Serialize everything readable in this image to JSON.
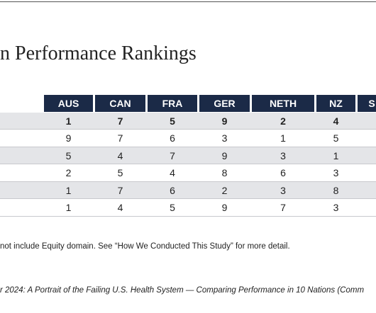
{
  "title": "n Performance Rankings",
  "note": "not include Equity domain. See “How We Conducted This Study” for more detail.",
  "source": "r 2024: A Portrait of the Failing U.S. Health System — Comparing Performance in 10 Nations (Comm",
  "colors": {
    "header_bg": "#1b2a47",
    "header_text": "#ffffff",
    "band": "#e4e5e8",
    "rule": "#c8c9cd"
  },
  "chart_data": {
    "type": "table",
    "columns": [
      "AUS",
      "CAN",
      "FRA",
      "GER",
      "NETH",
      "NZ",
      "S"
    ],
    "rows": [
      {
        "values": [
          "1",
          "7",
          "5",
          "9",
          "2",
          "4",
          ""
        ]
      },
      {
        "values": [
          "9",
          "7",
          "6",
          "3",
          "1",
          "5",
          ""
        ]
      },
      {
        "values": [
          "5",
          "4",
          "7",
          "9",
          "3",
          "1",
          ""
        ]
      },
      {
        "values": [
          "2",
          "5",
          "4",
          "8",
          "6",
          "3",
          ""
        ]
      },
      {
        "values": [
          "1",
          "7",
          "6",
          "2",
          "3",
          "8",
          ""
        ]
      },
      {
        "values": [
          "1",
          "4",
          "5",
          "9",
          "7",
          "3",
          ""
        ]
      }
    ]
  }
}
